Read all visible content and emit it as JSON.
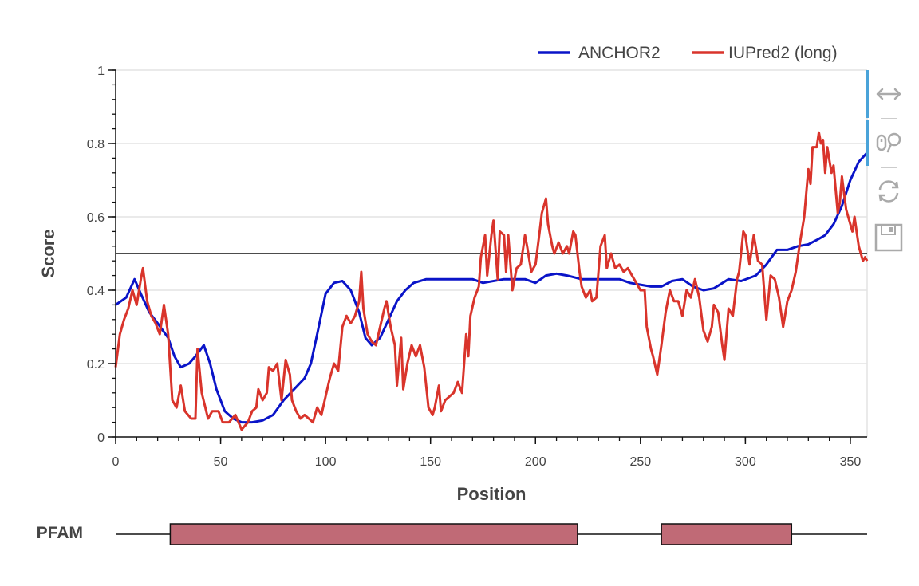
{
  "chart_data": {
    "type": "line",
    "xlabel": "Position",
    "ylabel": "Score",
    "xlim": [
      0,
      358
    ],
    "ylim": [
      0,
      1
    ],
    "x_ticks": [
      0,
      50,
      100,
      150,
      200,
      250,
      300,
      350
    ],
    "y_ticks": [
      0,
      0.2,
      0.4,
      0.6,
      0.8,
      1
    ],
    "y_tick_labels": [
      "0",
      "0.2",
      "0.4",
      "0.6",
      "0.8",
      "1"
    ],
    "threshold": 0.5,
    "grid": true,
    "legend_position": "top-right",
    "series": [
      {
        "name": "ANCHOR2",
        "color": "#0a14c8",
        "points": [
          [
            0,
            0.36
          ],
          [
            5,
            0.38
          ],
          [
            9,
            0.43
          ],
          [
            12,
            0.39
          ],
          [
            16,
            0.34
          ],
          [
            20,
            0.31
          ],
          [
            25,
            0.27
          ],
          [
            28,
            0.22
          ],
          [
            31,
            0.19
          ],
          [
            35,
            0.2
          ],
          [
            38,
            0.22
          ],
          [
            42,
            0.25
          ],
          [
            45,
            0.2
          ],
          [
            48,
            0.13
          ],
          [
            52,
            0.07
          ],
          [
            56,
            0.05
          ],
          [
            60,
            0.04
          ],
          [
            65,
            0.04
          ],
          [
            70,
            0.045
          ],
          [
            75,
            0.06
          ],
          [
            80,
            0.1
          ],
          [
            85,
            0.13
          ],
          [
            90,
            0.16
          ],
          [
            93,
            0.2
          ],
          [
            96,
            0.28
          ],
          [
            100,
            0.39
          ],
          [
            104,
            0.42
          ],
          [
            108,
            0.425
          ],
          [
            112,
            0.4
          ],
          [
            116,
            0.34
          ],
          [
            119,
            0.27
          ],
          [
            122,
            0.25
          ],
          [
            126,
            0.27
          ],
          [
            130,
            0.32
          ],
          [
            134,
            0.37
          ],
          [
            138,
            0.4
          ],
          [
            142,
            0.42
          ],
          [
            148,
            0.43
          ],
          [
            155,
            0.43
          ],
          [
            162,
            0.43
          ],
          [
            170,
            0.43
          ],
          [
            175,
            0.42
          ],
          [
            185,
            0.43
          ],
          [
            195,
            0.43
          ],
          [
            200,
            0.42
          ],
          [
            205,
            0.44
          ],
          [
            210,
            0.445
          ],
          [
            215,
            0.44
          ],
          [
            222,
            0.43
          ],
          [
            230,
            0.43
          ],
          [
            240,
            0.43
          ],
          [
            245,
            0.42
          ],
          [
            250,
            0.415
          ],
          [
            255,
            0.41
          ],
          [
            260,
            0.41
          ],
          [
            265,
            0.425
          ],
          [
            270,
            0.43
          ],
          [
            275,
            0.41
          ],
          [
            280,
            0.4
          ],
          [
            285,
            0.405
          ],
          [
            292,
            0.43
          ],
          [
            298,
            0.425
          ],
          [
            305,
            0.44
          ],
          [
            310,
            0.47
          ],
          [
            315,
            0.51
          ],
          [
            320,
            0.51
          ],
          [
            325,
            0.52
          ],
          [
            330,
            0.525
          ],
          [
            335,
            0.54
          ],
          [
            338,
            0.55
          ],
          [
            342,
            0.58
          ],
          [
            346,
            0.63
          ],
          [
            350,
            0.7
          ],
          [
            354,
            0.75
          ],
          [
            358,
            0.775
          ]
        ]
      },
      {
        "name": "IUPred2 (long)",
        "color": "#d9342b",
        "points": [
          [
            0,
            0.19
          ],
          [
            2,
            0.28
          ],
          [
            4,
            0.32
          ],
          [
            6,
            0.35
          ],
          [
            8,
            0.4
          ],
          [
            10,
            0.36
          ],
          [
            12,
            0.43
          ],
          [
            13,
            0.46
          ],
          [
            15,
            0.37
          ],
          [
            17,
            0.33
          ],
          [
            19,
            0.31
          ],
          [
            21,
            0.28
          ],
          [
            23,
            0.36
          ],
          [
            25,
            0.28
          ],
          [
            27,
            0.1
          ],
          [
            29,
            0.08
          ],
          [
            31,
            0.14
          ],
          [
            33,
            0.07
          ],
          [
            36,
            0.05
          ],
          [
            38,
            0.05
          ],
          [
            39,
            0.24
          ],
          [
            41,
            0.12
          ],
          [
            44,
            0.05
          ],
          [
            46,
            0.07
          ],
          [
            49,
            0.07
          ],
          [
            51,
            0.04
          ],
          [
            54,
            0.04
          ],
          [
            57,
            0.06
          ],
          [
            60,
            0.02
          ],
          [
            63,
            0.04
          ],
          [
            65,
            0.07
          ],
          [
            67,
            0.08
          ],
          [
            68,
            0.13
          ],
          [
            70,
            0.1
          ],
          [
            72,
            0.12
          ],
          [
            73,
            0.19
          ],
          [
            75,
            0.18
          ],
          [
            77,
            0.2
          ],
          [
            79,
            0.1
          ],
          [
            81,
            0.21
          ],
          [
            83,
            0.17
          ],
          [
            84,
            0.1
          ],
          [
            86,
            0.07
          ],
          [
            88,
            0.05
          ],
          [
            90,
            0.06
          ],
          [
            92,
            0.05
          ],
          [
            94,
            0.04
          ],
          [
            96,
            0.08
          ],
          [
            98,
            0.06
          ],
          [
            100,
            0.11
          ],
          [
            102,
            0.16
          ],
          [
            104,
            0.2
          ],
          [
            106,
            0.18
          ],
          [
            108,
            0.3
          ],
          [
            110,
            0.33
          ],
          [
            112,
            0.31
          ],
          [
            114,
            0.33
          ],
          [
            116,
            0.37
          ],
          [
            117,
            0.45
          ],
          [
            118,
            0.35
          ],
          [
            120,
            0.28
          ],
          [
            122,
            0.26
          ],
          [
            124,
            0.25
          ],
          [
            126,
            0.3
          ],
          [
            128,
            0.35
          ],
          [
            129,
            0.37
          ],
          [
            131,
            0.3
          ],
          [
            133,
            0.25
          ],
          [
            134,
            0.14
          ],
          [
            136,
            0.27
          ],
          [
            137,
            0.13
          ],
          [
            139,
            0.2
          ],
          [
            141,
            0.25
          ],
          [
            143,
            0.22
          ],
          [
            145,
            0.25
          ],
          [
            147,
            0.19
          ],
          [
            149,
            0.08
          ],
          [
            151,
            0.06
          ],
          [
            152,
            0.08
          ],
          [
            154,
            0.14
          ],
          [
            155,
            0.07
          ],
          [
            157,
            0.1
          ],
          [
            159,
            0.11
          ],
          [
            161,
            0.12
          ],
          [
            163,
            0.15
          ],
          [
            165,
            0.12
          ],
          [
            167,
            0.28
          ],
          [
            168,
            0.22
          ],
          [
            169,
            0.33
          ],
          [
            171,
            0.38
          ],
          [
            173,
            0.41
          ],
          [
            174,
            0.49
          ],
          [
            176,
            0.55
          ],
          [
            177,
            0.44
          ],
          [
            179,
            0.55
          ],
          [
            180,
            0.59
          ],
          [
            182,
            0.43
          ],
          [
            183,
            0.56
          ],
          [
            185,
            0.55
          ],
          [
            186,
            0.45
          ],
          [
            187,
            0.55
          ],
          [
            189,
            0.4
          ],
          [
            191,
            0.46
          ],
          [
            193,
            0.47
          ],
          [
            195,
            0.55
          ],
          [
            196,
            0.52
          ],
          [
            198,
            0.45
          ],
          [
            200,
            0.47
          ],
          [
            202,
            0.56
          ],
          [
            203,
            0.61
          ],
          [
            205,
            0.65
          ],
          [
            206,
            0.58
          ],
          [
            208,
            0.52
          ],
          [
            209,
            0.5
          ],
          [
            211,
            0.53
          ],
          [
            213,
            0.5
          ],
          [
            215,
            0.52
          ],
          [
            216,
            0.5
          ],
          [
            218,
            0.56
          ],
          [
            219,
            0.55
          ],
          [
            221,
            0.45
          ],
          [
            222,
            0.41
          ],
          [
            224,
            0.38
          ],
          [
            226,
            0.4
          ],
          [
            227,
            0.37
          ],
          [
            229,
            0.38
          ],
          [
            231,
            0.52
          ],
          [
            233,
            0.55
          ],
          [
            234,
            0.46
          ],
          [
            236,
            0.5
          ],
          [
            238,
            0.46
          ],
          [
            240,
            0.47
          ],
          [
            242,
            0.45
          ],
          [
            244,
            0.46
          ],
          [
            246,
            0.44
          ],
          [
            248,
            0.42
          ],
          [
            250,
            0.4
          ],
          [
            252,
            0.4
          ],
          [
            253,
            0.3
          ],
          [
            255,
            0.24
          ],
          [
            256,
            0.22
          ],
          [
            258,
            0.17
          ],
          [
            260,
            0.25
          ],
          [
            262,
            0.34
          ],
          [
            264,
            0.4
          ],
          [
            266,
            0.37
          ],
          [
            268,
            0.37
          ],
          [
            270,
            0.33
          ],
          [
            272,
            0.4
          ],
          [
            274,
            0.38
          ],
          [
            276,
            0.43
          ],
          [
            278,
            0.38
          ],
          [
            280,
            0.29
          ],
          [
            282,
            0.26
          ],
          [
            284,
            0.3
          ],
          [
            285,
            0.36
          ],
          [
            287,
            0.34
          ],
          [
            289,
            0.25
          ],
          [
            290,
            0.21
          ],
          [
            292,
            0.35
          ],
          [
            294,
            0.33
          ],
          [
            296,
            0.43
          ],
          [
            297,
            0.45
          ],
          [
            299,
            0.56
          ],
          [
            300,
            0.55
          ],
          [
            302,
            0.47
          ],
          [
            304,
            0.55
          ],
          [
            306,
            0.48
          ],
          [
            308,
            0.47
          ],
          [
            310,
            0.32
          ],
          [
            312,
            0.44
          ],
          [
            314,
            0.43
          ],
          [
            316,
            0.38
          ],
          [
            318,
            0.3
          ],
          [
            320,
            0.37
          ],
          [
            322,
            0.4
          ],
          [
            324,
            0.45
          ],
          [
            326,
            0.53
          ],
          [
            328,
            0.6
          ],
          [
            330,
            0.73
          ],
          [
            331,
            0.69
          ],
          [
            332,
            0.79
          ],
          [
            334,
            0.79
          ],
          [
            335,
            0.83
          ],
          [
            336,
            0.8
          ],
          [
            337,
            0.81
          ],
          [
            338,
            0.72
          ],
          [
            339,
            0.79
          ],
          [
            341,
            0.72
          ],
          [
            342,
            0.74
          ],
          [
            344,
            0.61
          ],
          [
            345,
            0.64
          ],
          [
            346,
            0.71
          ],
          [
            348,
            0.62
          ],
          [
            349,
            0.6
          ],
          [
            351,
            0.56
          ],
          [
            352,
            0.6
          ],
          [
            353,
            0.56
          ],
          [
            354,
            0.52
          ],
          [
            355,
            0.5
          ],
          [
            356,
            0.48
          ],
          [
            357,
            0.49
          ],
          [
            358,
            0.48
          ]
        ]
      }
    ],
    "annotation_track": {
      "label": "PFAM",
      "color": "#c06a76",
      "domains": [
        [
          26,
          220
        ],
        [
          260,
          322
        ]
      ]
    }
  },
  "toolbar": {
    "tools": [
      {
        "icon": "pan-horizontal-icon",
        "active": true
      },
      {
        "icon": "wheel-zoom-icon",
        "active": true
      },
      {
        "icon": "reset-icon",
        "active": false
      },
      {
        "icon": "save-icon",
        "active": false
      }
    ]
  }
}
